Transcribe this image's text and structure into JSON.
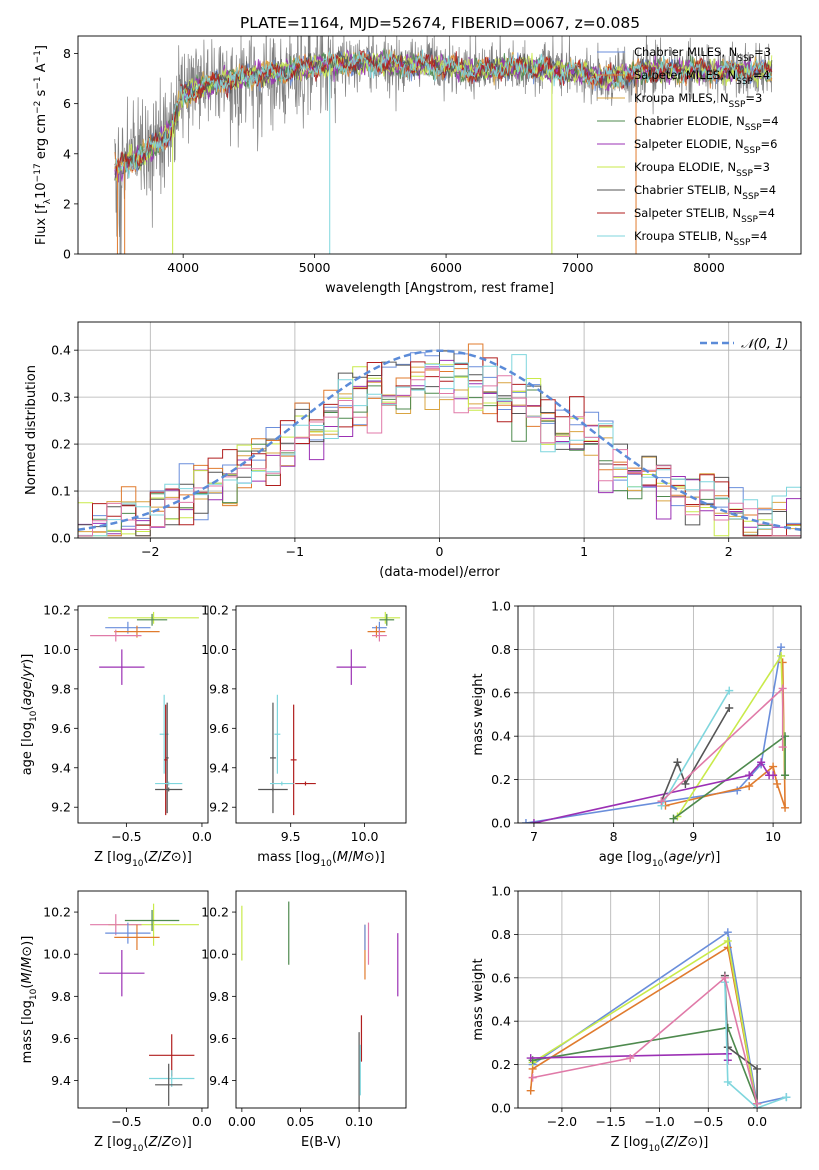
{
  "figure": {
    "title": "PLATE=1164, MJD=52674, FIBERID=0067, z=0.085"
  },
  "colors": {
    "Chabrier MILES": "#6a8edb",
    "Salpeter MILES": "#e07b2e",
    "Kroupa MILES": "#d9a441",
    "Chabrier ELODIE": "#4e8a4e",
    "Salpeter ELODIE": "#9b30b4",
    "Kroupa ELODIE": "#c9ea4a",
    "Chabrier STELIB": "#555555",
    "Salpeter STELIB": "#b01e1e",
    "Kroupa STELIB": "#7fd6dd",
    "Extra": "#e07aa8",
    "data": "#808080"
  },
  "chart_data": [
    {
      "id": "spectrum",
      "type": "line",
      "title": "",
      "xlabel": "wavelength [Angstrom, rest frame]",
      "ylabel": "Flux [f_λ 10^-17 erg cm^-2 s^-1 A^-1]",
      "xlim": [
        3200,
        8700
      ],
      "ylim": [
        0,
        8.7
      ],
      "xticks": [
        4000,
        5000,
        6000,
        7000,
        8000
      ],
      "yticks": [
        0,
        2,
        4,
        6,
        8
      ],
      "grid": false,
      "legend_position": "top-right",
      "legend": [
        {
          "label": "Chabrier MILES, N",
          "sub": "SSP",
          "suffix": "=3",
          "model": "Chabrier MILES"
        },
        {
          "label": "Salpeter MILES, N",
          "sub": "SSP",
          "suffix": "=4",
          "model": "Salpeter MILES"
        },
        {
          "label": "Kroupa MILES, N",
          "sub": "SSP",
          "suffix": "=3",
          "model": "Kroupa MILES"
        },
        {
          "label": "Chabrier ELODIE, N",
          "sub": "SSP",
          "suffix": "=4",
          "model": "Chabrier ELODIE"
        },
        {
          "label": "Salpeter ELODIE, N",
          "sub": "SSP",
          "suffix": "=6",
          "model": "Salpeter ELODIE"
        },
        {
          "label": "Kroupa ELODIE, N",
          "sub": "SSP",
          "suffix": "=3",
          "model": "Kroupa ELODIE"
        },
        {
          "label": "Chabrier STELIB, N",
          "sub": "SSP",
          "suffix": "=4",
          "model": "Chabrier STELIB"
        },
        {
          "label": "Salpeter STELIB, N",
          "sub": "SSP",
          "suffix": "=4",
          "model": "Salpeter STELIB"
        },
        {
          "label": "Kroupa STELIB, N",
          "sub": "SSP",
          "suffix": "=4",
          "model": "Kroupa STELIB"
        }
      ],
      "continuum": [
        [
          3480,
          3.5
        ],
        [
          3600,
          3.9
        ],
        [
          3700,
          4.1
        ],
        [
          3800,
          4.6
        ],
        [
          3900,
          5.0
        ],
        [
          3980,
          6.3
        ],
        [
          4100,
          6.6
        ],
        [
          4300,
          6.9
        ],
        [
          4500,
          7.1
        ],
        [
          4800,
          7.3
        ],
        [
          5000,
          7.5
        ],
        [
          5200,
          7.6
        ],
        [
          5500,
          7.6
        ],
        [
          5800,
          7.5
        ],
        [
          6000,
          7.5
        ],
        [
          6200,
          7.3
        ],
        [
          6400,
          7.4
        ],
        [
          6600,
          7.5
        ],
        [
          6800,
          7.3
        ],
        [
          7000,
          7.3
        ],
        [
          7200,
          7.0
        ],
        [
          7300,
          7.1
        ],
        [
          7500,
          7.3
        ],
        [
          8000,
          7.3
        ],
        [
          8500,
          7.3
        ]
      ],
      "data_range": [
        3480,
        8480
      ]
    },
    {
      "id": "residuals",
      "type": "histogram",
      "xlabel": "(data-model)/error",
      "ylabel": "Normed distribution",
      "xlim": [
        -2.5,
        2.5
      ],
      "ylim": [
        0,
        0.46
      ],
      "xticks": [
        -2,
        -1,
        0,
        1,
        2
      ],
      "yticks": [
        0.0,
        0.1,
        0.2,
        0.3,
        0.4
      ],
      "grid": true,
      "legend_position": "top-right",
      "legend": [
        {
          "label": "𝒩(0, 1)",
          "style": "dashed"
        }
      ],
      "bin_width": 0.1
    },
    {
      "id": "z_age",
      "type": "errorbar",
      "xlabel": "Z [log10(Z/Z⊙)]",
      "ylabel": "age [log10(age/yr)]",
      "xlim": [
        -0.82,
        0.04
      ],
      "ylim": [
        9.12,
        10.22
      ],
      "xticks": [
        -0.5,
        0.0
      ],
      "yticks": [
        9.2,
        9.4,
        9.6,
        9.8,
        10.0,
        10.2
      ],
      "grid": false,
      "points": [
        {
          "model": "Kroupa ELODIE",
          "x": -0.32,
          "xerr": 0.3,
          "y": 10.16,
          "yerr": 0.03
        },
        {
          "model": "Chabrier ELODIE",
          "x": -0.33,
          "xerr": 0.1,
          "y": 10.15,
          "yerr": 0.03
        },
        {
          "model": "Chabrier MILES",
          "x": -0.49,
          "xerr": 0.15,
          "y": 10.11,
          "yerr": 0.03
        },
        {
          "model": "Salpeter MILES",
          "x": -0.43,
          "xerr": 0.15,
          "y": 10.09,
          "yerr": 0.03
        },
        {
          "model": "Extra",
          "x": -0.57,
          "xerr": 0.17,
          "y": 10.07,
          "yerr": 0.03
        },
        {
          "model": "Salpeter ELODIE",
          "x": -0.53,
          "xerr": 0.15,
          "y": 9.91,
          "yerr": 0.09
        },
        {
          "model": "Kroupa STELIB",
          "x": -0.25,
          "xerr": 0.03,
          "y": 9.57,
          "yerr": 0.2
        },
        {
          "model": "Chabrier STELIB",
          "x": -0.23,
          "xerr": 0.01,
          "y": 9.45,
          "yerr": 0.28
        },
        {
          "model": "Salpeter STELIB",
          "x": -0.24,
          "xerr": 0.01,
          "y": 9.44,
          "yerr": 0.28
        },
        {
          "model": "Kroupa STELIB",
          "x": -0.22,
          "xerr": 0.09,
          "y": 9.32,
          "yerr": 0.01
        },
        {
          "model": "Chabrier STELIB",
          "x": -0.22,
          "xerr": 0.09,
          "y": 9.29,
          "yerr": 0.01
        }
      ]
    },
    {
      "id": "mass_age",
      "type": "errorbar",
      "xlabel": "mass [log10(M/M⊙)]",
      "ylabel": "",
      "xlim": [
        9.13,
        10.28
      ],
      "ylim": [
        9.12,
        10.22
      ],
      "xticks": [
        9.5,
        10.0
      ],
      "yticks": [
        9.2,
        9.4,
        9.6,
        9.8,
        10.0,
        10.2
      ],
      "grid": false,
      "points": [
        {
          "model": "Kroupa ELODIE",
          "x": 10.14,
          "xerr": 0.1,
          "y": 10.16,
          "yerr": 0.03
        },
        {
          "model": "Chabrier ELODIE",
          "x": 10.15,
          "xerr": 0.05,
          "y": 10.15,
          "yerr": 0.03
        },
        {
          "model": "Chabrier MILES",
          "x": 10.1,
          "xerr": 0.05,
          "y": 10.11,
          "yerr": 0.03
        },
        {
          "model": "Salpeter MILES",
          "x": 10.08,
          "xerr": 0.06,
          "y": 10.09,
          "yerr": 0.03
        },
        {
          "model": "Extra",
          "x": 10.1,
          "xerr": 0.05,
          "y": 10.07,
          "yerr": 0.03
        },
        {
          "model": "Salpeter ELODIE",
          "x": 9.91,
          "xerr": 0.1,
          "y": 9.91,
          "yerr": 0.09
        },
        {
          "model": "Kroupa STELIB",
          "x": 9.41,
          "xerr": 0.02,
          "y": 9.57,
          "yerr": 0.2
        },
        {
          "model": "Chabrier STELIB",
          "x": 9.38,
          "xerr": 0.02,
          "y": 9.45,
          "yerr": 0.28
        },
        {
          "model": "Salpeter STELIB",
          "x": 9.52,
          "xerr": 0.02,
          "y": 9.44,
          "yerr": 0.28
        },
        {
          "model": "Kroupa STELIB",
          "x": 9.44,
          "xerr": 0.08,
          "y": 9.32,
          "yerr": 0.01
        },
        {
          "model": "Salpeter STELIB",
          "x": 9.6,
          "xerr": 0.07,
          "y": 9.32,
          "yerr": 0.01
        },
        {
          "model": "Chabrier STELIB",
          "x": 9.38,
          "xerr": 0.1,
          "y": 9.29,
          "yerr": 0.01
        }
      ]
    },
    {
      "id": "age_weight",
      "type": "line",
      "xlabel": "age [log10(age/yr)]",
      "ylabel": "mass weight",
      "xlim": [
        6.8,
        10.35
      ],
      "ylim": [
        0,
        1
      ],
      "xticks": [
        7,
        8,
        9,
        10
      ],
      "yticks": [
        0.0,
        0.2,
        0.4,
        0.6,
        0.8,
        1.0
      ],
      "grid": true,
      "series": [
        {
          "model": "Chabrier MILES",
          "points": [
            [
              6.9,
              0.0
            ],
            [
              9.55,
              0.15
            ],
            [
              9.85,
              0.27
            ],
            [
              10.1,
              0.81
            ]
          ]
        },
        {
          "model": "Salpeter MILES",
          "points": [
            [
              8.65,
              0.08
            ],
            [
              9.7,
              0.17
            ],
            [
              10.0,
              0.26
            ],
            [
              10.05,
              0.18
            ],
            [
              10.15,
              0.07
            ],
            [
              10.12,
              0.74
            ]
          ]
        },
        {
          "model": "Kroupa ELODIE",
          "points": [
            [
              8.8,
              0.03
            ],
            [
              10.1,
              0.77
            ],
            [
              10.15,
              0.22
            ]
          ]
        },
        {
          "model": "Chabrier ELODIE",
          "points": [
            [
              8.75,
              0.02
            ],
            [
              10.15,
              0.4
            ],
            [
              10.15,
              0.22
            ]
          ]
        },
        {
          "model": "Salpeter ELODIE",
          "points": [
            [
              7.0,
              0.0
            ],
            [
              9.7,
              0.22
            ],
            [
              9.85,
              0.28
            ],
            [
              9.95,
              0.22
            ],
            [
              10.0,
              0.22
            ]
          ]
        },
        {
          "model": "Chabrier STELIB",
          "points": [
            [
              8.6,
              0.1
            ],
            [
              8.8,
              0.28
            ],
            [
              8.9,
              0.18
            ],
            [
              9.45,
              0.53
            ]
          ]
        },
        {
          "model": "Kroupa STELIB",
          "points": [
            [
              8.6,
              0.08
            ],
            [
              9.45,
              0.61
            ]
          ]
        },
        {
          "model": "Extra",
          "points": [
            [
              8.6,
              0.1
            ],
            [
              10.12,
              0.62
            ],
            [
              10.12,
              0.35
            ]
          ]
        }
      ]
    },
    {
      "id": "z_mass",
      "type": "errorbar",
      "xlabel": "Z [log10(Z/Z⊙)]",
      "ylabel": "mass [log10(M/M⊙)]",
      "xlim": [
        -0.82,
        0.04
      ],
      "ylim": [
        9.27,
        10.3
      ],
      "xticks": [
        -0.5,
        0.0
      ],
      "yticks": [
        9.4,
        9.6,
        9.8,
        10.0,
        10.2
      ],
      "grid": false,
      "points": [
        {
          "model": "Kroupa ELODIE",
          "x": -0.32,
          "xerr": 0.3,
          "y": 10.14,
          "yerr": 0.1
        },
        {
          "model": "Chabrier ELODIE",
          "x": -0.33,
          "xerr": 0.18,
          "y": 10.16,
          "yerr": 0.05
        },
        {
          "model": "Extra",
          "x": -0.57,
          "xerr": 0.17,
          "y": 10.14,
          "yerr": 0.05
        },
        {
          "model": "Chabrier MILES",
          "x": -0.49,
          "xerr": 0.15,
          "y": 10.1,
          "yerr": 0.05
        },
        {
          "model": "Salpeter MILES",
          "x": -0.43,
          "xerr": 0.15,
          "y": 10.08,
          "yerr": 0.06
        },
        {
          "model": "Salpeter ELODIE",
          "x": -0.53,
          "xerr": 0.15,
          "y": 9.91,
          "yerr": 0.11
        },
        {
          "model": "Salpeter STELIB",
          "x": -0.2,
          "xerr": 0.15,
          "y": 9.52,
          "yerr": 0.1
        },
        {
          "model": "Kroupa STELIB",
          "x": -0.2,
          "xerr": 0.15,
          "y": 9.41,
          "yerr": 0.04
        },
        {
          "model": "Chabrier STELIB",
          "x": -0.22,
          "xerr": 0.09,
          "y": 9.38,
          "yerr": 0.1
        }
      ]
    },
    {
      "id": "ebv_mass",
      "type": "errorbar",
      "xlabel": "E(B-V)",
      "ylabel": "",
      "xlim": [
        -0.005,
        0.14
      ],
      "ylim": [
        9.27,
        10.3
      ],
      "xticks": [
        0.0,
        0.05,
        0.1
      ],
      "xticklabels": [
        "0.00",
        "0.05",
        "0.10"
      ],
      "yticks": [
        9.4,
        9.6,
        9.8,
        10.0,
        10.2
      ],
      "grid": false,
      "points": [
        {
          "model": "Kroupa ELODIE",
          "x": 0.0,
          "xerr": 0.0,
          "y": 10.1,
          "yerr": 0.13
        },
        {
          "model": "Chabrier ELODIE",
          "x": 0.04,
          "xerr": 0.0,
          "y": 10.1,
          "yerr": 0.15
        },
        {
          "model": "Extra",
          "x": 0.108,
          "xerr": 0.0,
          "y": 10.05,
          "yerr": 0.1
        },
        {
          "model": "Salpeter MILES",
          "x": 0.105,
          "xerr": 0.0,
          "y": 10.01,
          "yerr": 0.13
        },
        {
          "model": "Chabrier MILES",
          "x": 0.105,
          "xerr": 0.0,
          "y": 10.08,
          "yerr": 0.06
        },
        {
          "model": "Salpeter ELODIE",
          "x": 0.133,
          "xerr": 0.0,
          "y": 9.95,
          "yerr": 0.15
        },
        {
          "model": "Salpeter STELIB",
          "x": 0.102,
          "xerr": 0.0,
          "y": 9.6,
          "yerr": 0.11
        },
        {
          "model": "Chabrier STELIB",
          "x": 0.1,
          "xerr": 0.0,
          "y": 9.45,
          "yerr": 0.18
        },
        {
          "model": "Kroupa STELIB",
          "x": 0.101,
          "xerr": 0.0,
          "y": 9.45,
          "yerr": 0.12
        }
      ]
    },
    {
      "id": "z_weight",
      "type": "line",
      "xlabel": "Z [log10(Z/Z⊙)]",
      "ylabel": "mass weight",
      "xlim": [
        -2.45,
        0.45
      ],
      "ylim": [
        0,
        1
      ],
      "xticks": [
        -2.0,
        -1.5,
        -1.0,
        -0.5,
        0.0
      ],
      "yticks": [
        0.0,
        0.2,
        0.4,
        0.6,
        0.8,
        1.0
      ],
      "grid": true,
      "series": [
        {
          "model": "Chabrier MILES",
          "points": [
            [
              -2.3,
              0.2
            ],
            [
              -0.3,
              0.81
            ],
            [
              0.0,
              0.02
            ],
            [
              0.3,
              0.05
            ]
          ]
        },
        {
          "model": "Salpeter MILES",
          "points": [
            [
              -2.32,
              0.08
            ],
            [
              -2.3,
              0.18
            ],
            [
              -0.3,
              0.74
            ],
            [
              0.0,
              0.0
            ]
          ]
        },
        {
          "model": "Kroupa ELODIE",
          "points": [
            [
              -2.3,
              0.21
            ],
            [
              -0.3,
              0.77
            ],
            [
              0.0,
              0.0
            ]
          ]
        },
        {
          "model": "Chabrier ELODIE",
          "points": [
            [
              -2.3,
              0.22
            ],
            [
              -0.3,
              0.37
            ],
            [
              0.0,
              0.02
            ]
          ]
        },
        {
          "model": "Salpeter ELODIE",
          "points": [
            [
              -2.32,
              0.23
            ],
            [
              -0.3,
              0.25
            ],
            [
              -0.3,
              0.22
            ]
          ]
        },
        {
          "model": "Chabrier STELIB",
          "points": [
            [
              -0.33,
              0.61
            ],
            [
              -0.3,
              0.28
            ],
            [
              0.0,
              0.18
            ],
            [
              0.0,
              0.0
            ]
          ]
        },
        {
          "model": "Kroupa STELIB",
          "points": [
            [
              -0.33,
              0.58
            ],
            [
              -0.3,
              0.12
            ],
            [
              0.0,
              0.0
            ],
            [
              0.3,
              0.05
            ]
          ]
        },
        {
          "model": "Extra",
          "points": [
            [
              -2.3,
              0.14
            ],
            [
              -1.3,
              0.23
            ],
            [
              -0.33,
              0.6
            ],
            [
              0.0,
              0.02
            ]
          ]
        }
      ]
    }
  ]
}
